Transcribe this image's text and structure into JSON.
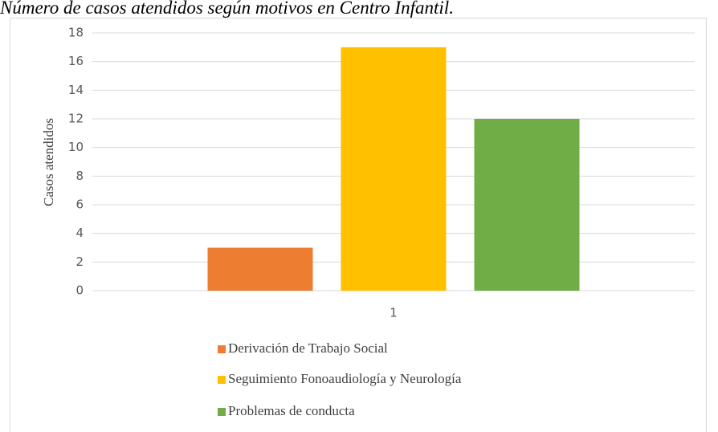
{
  "chart_data": {
    "type": "bar",
    "title": "Número de casos atendidos según motivos en Centro Infantil.",
    "y_label": "Casos atendidos",
    "categories": [
      "1"
    ],
    "series": [
      {
        "name": "Derivación de Trabajo Social",
        "color": "#ed7d31",
        "values": [
          3
        ]
      },
      {
        "name": "Seguimiento Fonoaudiología y Neurología",
        "color": "#ffc000",
        "values": [
          17
        ]
      },
      {
        "name": "Problemas de conducta",
        "color": "#70ad47",
        "values": [
          12
        ]
      }
    ],
    "ylim": [
      0,
      18
    ],
    "yticks": [
      0,
      2,
      4,
      6,
      8,
      10,
      12,
      14,
      16,
      18
    ],
    "grid": true,
    "legend": "bottom"
  }
}
